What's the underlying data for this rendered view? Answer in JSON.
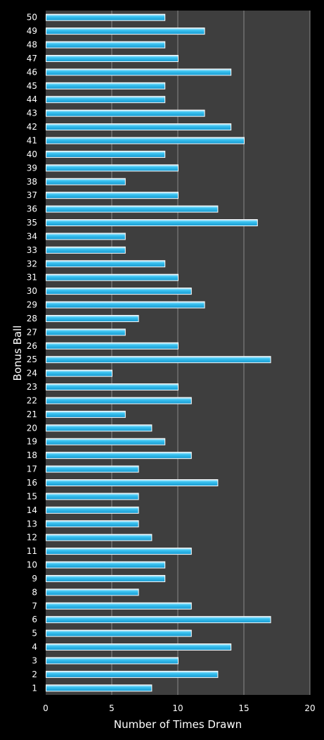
{
  "chart_data": {
    "type": "bar",
    "orientation": "horizontal",
    "xlabel": "Number of Times Drawn",
    "ylabel": "Bonus Ball",
    "xlim": [
      0,
      20
    ],
    "xticks": [
      0,
      5,
      10,
      15,
      20
    ],
    "grid": true,
    "colors": {
      "background": "#000000",
      "plot_area": "#3e3e3e",
      "bar": "#23b5e9",
      "bar_highlight": "#a8e6fb",
      "bar_border": "#ffffff",
      "gridline": "#8a8a8a"
    },
    "categories": [
      "1",
      "2",
      "3",
      "4",
      "5",
      "6",
      "7",
      "8",
      "9",
      "10",
      "11",
      "12",
      "13",
      "14",
      "15",
      "16",
      "17",
      "18",
      "19",
      "20",
      "21",
      "22",
      "23",
      "24",
      "25",
      "26",
      "27",
      "28",
      "29",
      "30",
      "31",
      "32",
      "33",
      "34",
      "35",
      "36",
      "37",
      "38",
      "39",
      "40",
      "41",
      "42",
      "43",
      "44",
      "45",
      "46",
      "47",
      "48",
      "49",
      "50"
    ],
    "values": [
      8,
      13,
      10,
      14,
      11,
      17,
      11,
      7,
      9,
      9,
      11,
      8,
      7,
      7,
      7,
      13,
      7,
      11,
      9,
      8,
      6,
      11,
      10,
      5,
      17,
      10,
      6,
      7,
      12,
      11,
      10,
      9,
      6,
      6,
      16,
      13,
      10,
      6,
      10,
      9,
      15,
      14,
      12,
      9,
      9,
      14,
      10,
      9,
      12,
      9
    ]
  }
}
